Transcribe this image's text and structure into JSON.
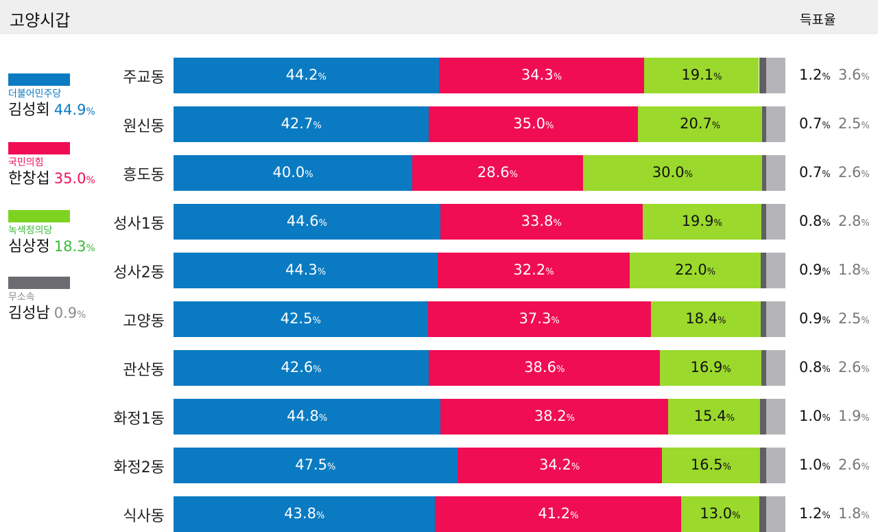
{
  "header": {
    "title": "고양시갑",
    "col_title": "득표율"
  },
  "legend": [
    {
      "party": "더불어민주당",
      "candidate": "김성회",
      "share": "44.9",
      "color": "#0a7bc2"
    },
    {
      "party": "국민의힘",
      "candidate": "한창섭",
      "share": "35.0",
      "color": "#f00d54"
    },
    {
      "party": "녹색정의당",
      "candidate": "심상정",
      "share": "18.3",
      "color": "#3ab83a",
      "swatch_color": "#7ed321"
    },
    {
      "party": "무소속",
      "candidate": "김성남",
      "share": "0.9",
      "color": "#8a8a8a",
      "swatch_color": "#6b6b70"
    }
  ],
  "colors": {
    "democratic": "#0a7bc2",
    "ppp": "#f00d54",
    "green": "#9bd92c",
    "independent": "#5f5f64",
    "other": "#b5b5b9"
  },
  "chart_data": {
    "type": "bar",
    "stacked": true,
    "orientation": "horizontal",
    "categories": [
      "주교동",
      "원신동",
      "흥도동",
      "성사1동",
      "성사2동",
      "고양동",
      "관산동",
      "화정1동",
      "화정2동",
      "식사동"
    ],
    "series": [
      {
        "name": "더불어민주당",
        "values": [
          44.2,
          42.7,
          40.0,
          44.6,
          44.3,
          42.5,
          42.6,
          44.8,
          47.5,
          43.8
        ]
      },
      {
        "name": "국민의힘",
        "values": [
          34.3,
          35.0,
          28.6,
          33.8,
          32.2,
          37.3,
          38.6,
          38.2,
          34.2,
          41.2
        ]
      },
      {
        "name": "녹색정의당",
        "values": [
          19.1,
          20.7,
          30.0,
          19.9,
          22.0,
          18.4,
          16.9,
          15.4,
          16.5,
          13.0
        ]
      },
      {
        "name": "무소속",
        "values": [
          1.2,
          0.7,
          0.7,
          0.8,
          0.9,
          0.9,
          0.8,
          1.0,
          1.0,
          1.2
        ]
      },
      {
        "values": [
          3.6,
          2.5,
          2.6,
          2.8,
          1.8,
          2.5,
          2.6,
          1.9,
          2.6,
          1.8
        ]
      }
    ],
    "labels": {
      "s0": [
        "44.2",
        "42.7",
        "40.0",
        "44.6",
        "44.3",
        "42.5",
        "42.6",
        "44.8",
        "47.5",
        "43.8"
      ],
      "s1": [
        "34.3",
        "35.0",
        "28.6",
        "33.8",
        "32.2",
        "37.3",
        "38.6",
        "38.2",
        "34.2",
        "41.2"
      ],
      "s2": [
        "19.1",
        "20.7",
        "30.0",
        "19.9",
        "22.0",
        "18.4",
        "16.9",
        "15.4",
        "16.5",
        "13.0"
      ],
      "s3": [
        "1.2",
        "0.7",
        "0.7",
        "0.8",
        "0.9",
        "0.9",
        "0.8",
        "1.0",
        "1.0",
        "1.2"
      ],
      "s4": [
        "3.6",
        "2.5",
        "2.6",
        "2.8",
        "1.8",
        "2.5",
        "2.6",
        "1.9",
        "2.6",
        "1.8"
      ]
    },
    "unit": "%",
    "xlim": [
      0,
      100
    ]
  }
}
